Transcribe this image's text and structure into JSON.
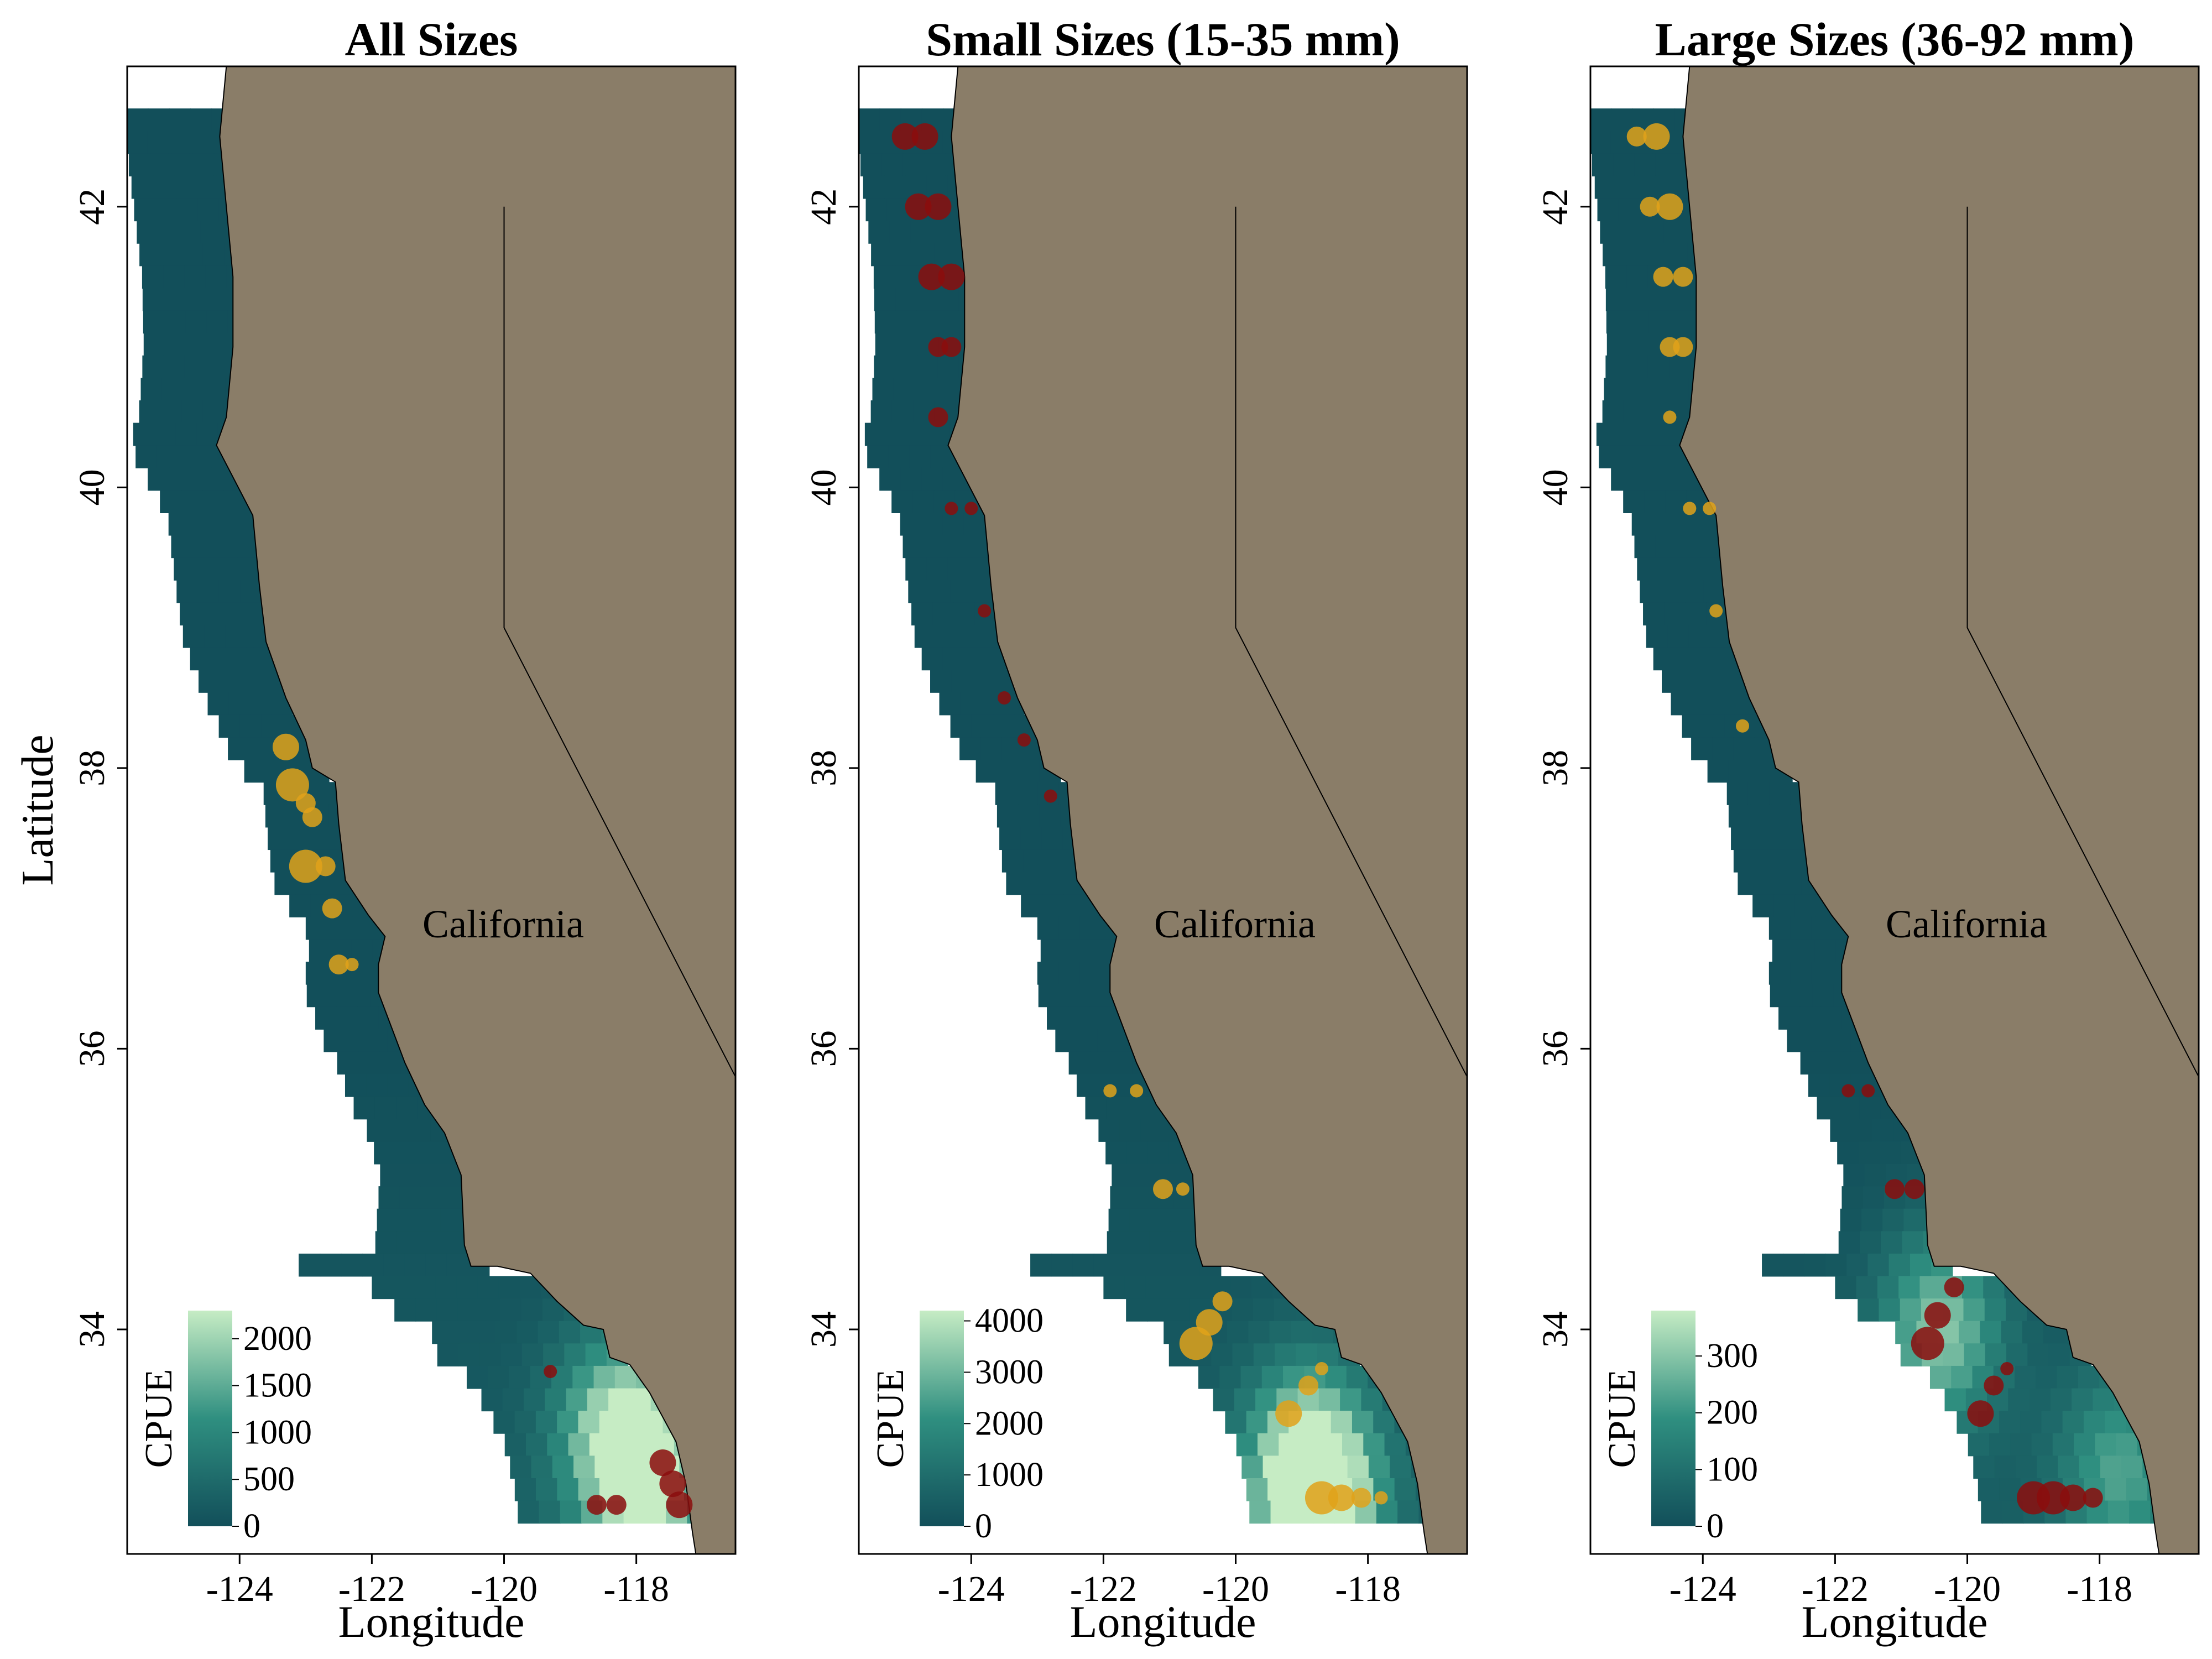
{
  "figure": {
    "xlabel": "Longitude",
    "ylabel": "Latitude",
    "x_ticks": [
      -124,
      -122,
      -120,
      -118
    ],
    "y_ticks": [
      34,
      36,
      38,
      40,
      42
    ],
    "state_label": "California",
    "colorbar_title": "CPUE",
    "colors": {
      "ocean_low": "#124f5a",
      "ocean_mid": "#2f8f80",
      "ocean_high": "#c6ecc4",
      "land": "#8a7d68",
      "gold": "#e0a21a",
      "red": "#8b0d0d"
    }
  },
  "chart_data": [
    {
      "type": "map-heatmap",
      "title": "All Sizes",
      "xlim": [
        -125.7,
        -116.5
      ],
      "ylim": [
        32.4,
        43.0
      ],
      "colorbar": {
        "min": 0,
        "max": 2300,
        "ticks": [
          0,
          500,
          1000,
          1500,
          2000
        ]
      },
      "hotspots": [
        {
          "lon": -117.8,
          "lat": 33.0,
          "cpue": 2200
        },
        {
          "lon": -118.4,
          "lat": 33.3,
          "cpue": 1300
        }
      ],
      "points": [
        {
          "lon": -123.3,
          "lat": 38.15,
          "size": 3,
          "color": "gold"
        },
        {
          "lon": -123.2,
          "lat": 37.88,
          "size": 4,
          "color": "gold"
        },
        {
          "lon": -123.0,
          "lat": 37.75,
          "size": 2,
          "color": "gold"
        },
        {
          "lon": -122.9,
          "lat": 37.65,
          "size": 2,
          "color": "gold"
        },
        {
          "lon": -123.0,
          "lat": 37.3,
          "size": 4,
          "color": "gold"
        },
        {
          "lon": -122.7,
          "lat": 37.3,
          "size": 2,
          "color": "gold"
        },
        {
          "lon": -122.6,
          "lat": 37.0,
          "size": 2,
          "color": "gold"
        },
        {
          "lon": -122.5,
          "lat": 36.6,
          "size": 2,
          "color": "gold"
        },
        {
          "lon": -122.3,
          "lat": 36.6,
          "size": 1,
          "color": "gold"
        },
        {
          "lon": -119.3,
          "lat": 33.7,
          "size": 1,
          "color": "red"
        },
        {
          "lon": -117.6,
          "lat": 33.05,
          "size": 3,
          "color": "red"
        },
        {
          "lon": -117.45,
          "lat": 32.9,
          "size": 3,
          "color": "red"
        },
        {
          "lon": -117.35,
          "lat": 32.75,
          "size": 3,
          "color": "red"
        },
        {
          "lon": -118.6,
          "lat": 32.75,
          "size": 2,
          "color": "red"
        },
        {
          "lon": -118.3,
          "lat": 32.75,
          "size": 2,
          "color": "red"
        }
      ]
    },
    {
      "type": "map-heatmap",
      "title": "Small Sizes (15-35 mm)",
      "xlim": [
        -125.7,
        -116.5
      ],
      "ylim": [
        32.4,
        43.0
      ],
      "colorbar": {
        "min": 0,
        "max": 4200,
        "ticks": [
          0,
          1000,
          2000,
          3000,
          4000
        ]
      },
      "hotspots": [
        {
          "lon": -118.7,
          "lat": 32.75,
          "cpue": 4100
        },
        {
          "lon": -119.0,
          "lat": 33.1,
          "cpue": 2600
        }
      ],
      "points": [
        {
          "lon": -125.0,
          "lat": 42.5,
          "size": 3,
          "color": "red"
        },
        {
          "lon": -124.7,
          "lat": 42.5,
          "size": 3,
          "color": "red"
        },
        {
          "lon": -124.8,
          "lat": 42.0,
          "size": 3,
          "color": "red"
        },
        {
          "lon": -124.5,
          "lat": 42.0,
          "size": 3,
          "color": "red"
        },
        {
          "lon": -124.6,
          "lat": 41.5,
          "size": 3,
          "color": "red"
        },
        {
          "lon": -124.3,
          "lat": 41.5,
          "size": 3,
          "color": "red"
        },
        {
          "lon": -124.5,
          "lat": 41.0,
          "size": 2,
          "color": "red"
        },
        {
          "lon": -124.3,
          "lat": 41.0,
          "size": 2,
          "color": "red"
        },
        {
          "lon": -124.5,
          "lat": 40.5,
          "size": 2,
          "color": "red"
        },
        {
          "lon": -124.3,
          "lat": 39.85,
          "size": 1,
          "color": "red"
        },
        {
          "lon": -124.0,
          "lat": 39.85,
          "size": 1,
          "color": "red"
        },
        {
          "lon": -123.8,
          "lat": 39.12,
          "size": 1,
          "color": "red"
        },
        {
          "lon": -123.5,
          "lat": 38.5,
          "size": 1,
          "color": "red"
        },
        {
          "lon": -123.2,
          "lat": 38.2,
          "size": 1,
          "color": "red"
        },
        {
          "lon": -122.8,
          "lat": 37.8,
          "size": 1,
          "color": "red"
        },
        {
          "lon": -121.9,
          "lat": 35.7,
          "size": 1,
          "color": "gold"
        },
        {
          "lon": -121.5,
          "lat": 35.7,
          "size": 1,
          "color": "gold"
        },
        {
          "lon": -121.1,
          "lat": 35.0,
          "size": 2,
          "color": "gold"
        },
        {
          "lon": -120.8,
          "lat": 35.0,
          "size": 1,
          "color": "gold"
        },
        {
          "lon": -120.6,
          "lat": 33.9,
          "size": 4,
          "color": "gold"
        },
        {
          "lon": -120.4,
          "lat": 34.05,
          "size": 3,
          "color": "gold"
        },
        {
          "lon": -120.2,
          "lat": 34.2,
          "size": 2,
          "color": "gold"
        },
        {
          "lon": -119.2,
          "lat": 33.4,
          "size": 3,
          "color": "gold"
        },
        {
          "lon": -118.9,
          "lat": 33.6,
          "size": 2,
          "color": "gold"
        },
        {
          "lon": -118.7,
          "lat": 33.72,
          "size": 1,
          "color": "gold"
        },
        {
          "lon": -118.7,
          "lat": 32.8,
          "size": 4,
          "color": "gold"
        },
        {
          "lon": -118.4,
          "lat": 32.8,
          "size": 3,
          "color": "gold"
        },
        {
          "lon": -118.1,
          "lat": 32.8,
          "size": 2,
          "color": "gold"
        },
        {
          "lon": -117.8,
          "lat": 32.8,
          "size": 1,
          "color": "gold"
        }
      ]
    },
    {
      "type": "map-heatmap",
      "title": "Large Sizes (36-92 mm)",
      "xlim": [
        -125.7,
        -116.5
      ],
      "ylim": [
        32.4,
        43.0
      ],
      "colorbar": {
        "min": 0,
        "max": 380,
        "ticks": [
          0,
          100,
          200,
          300
        ]
      },
      "hotspots": [
        {
          "lon": -120.4,
          "lat": 34.0,
          "cpue": 280
        },
        {
          "lon": -117.7,
          "lat": 33.0,
          "cpue": 200
        }
      ],
      "points": [
        {
          "lon": -125.0,
          "lat": 42.5,
          "size": 2,
          "color": "gold"
        },
        {
          "lon": -124.7,
          "lat": 42.5,
          "size": 3,
          "color": "gold"
        },
        {
          "lon": -124.8,
          "lat": 42.0,
          "size": 2,
          "color": "gold"
        },
        {
          "lon": -124.5,
          "lat": 42.0,
          "size": 3,
          "color": "gold"
        },
        {
          "lon": -124.6,
          "lat": 41.5,
          "size": 2,
          "color": "gold"
        },
        {
          "lon": -124.3,
          "lat": 41.5,
          "size": 2,
          "color": "gold"
        },
        {
          "lon": -124.5,
          "lat": 41.0,
          "size": 2,
          "color": "gold"
        },
        {
          "lon": -124.3,
          "lat": 41.0,
          "size": 2,
          "color": "gold"
        },
        {
          "lon": -124.5,
          "lat": 40.5,
          "size": 1,
          "color": "gold"
        },
        {
          "lon": -124.2,
          "lat": 39.85,
          "size": 1,
          "color": "gold"
        },
        {
          "lon": -123.9,
          "lat": 39.85,
          "size": 1,
          "color": "gold"
        },
        {
          "lon": -123.8,
          "lat": 39.12,
          "size": 1,
          "color": "gold"
        },
        {
          "lon": -123.4,
          "lat": 38.3,
          "size": 1,
          "color": "gold"
        },
        {
          "lon": -121.8,
          "lat": 35.7,
          "size": 1,
          "color": "red"
        },
        {
          "lon": -121.5,
          "lat": 35.7,
          "size": 1,
          "color": "red"
        },
        {
          "lon": -121.1,
          "lat": 35.0,
          "size": 2,
          "color": "red"
        },
        {
          "lon": -120.8,
          "lat": 35.0,
          "size": 2,
          "color": "red"
        },
        {
          "lon": -120.6,
          "lat": 33.9,
          "size": 4,
          "color": "red"
        },
        {
          "lon": -120.45,
          "lat": 34.1,
          "size": 3,
          "color": "red"
        },
        {
          "lon": -120.2,
          "lat": 34.3,
          "size": 2,
          "color": "red"
        },
        {
          "lon": -119.8,
          "lat": 33.4,
          "size": 3,
          "color": "red"
        },
        {
          "lon": -119.6,
          "lat": 33.6,
          "size": 2,
          "color": "red"
        },
        {
          "lon": -119.4,
          "lat": 33.72,
          "size": 1,
          "color": "red"
        },
        {
          "lon": -119.0,
          "lat": 32.8,
          "size": 4,
          "color": "red"
        },
        {
          "lon": -118.7,
          "lat": 32.8,
          "size": 4,
          "color": "red"
        },
        {
          "lon": -118.4,
          "lat": 32.8,
          "size": 3,
          "color": "red"
        },
        {
          "lon": -118.1,
          "lat": 32.8,
          "size": 2,
          "color": "red"
        }
      ]
    }
  ]
}
